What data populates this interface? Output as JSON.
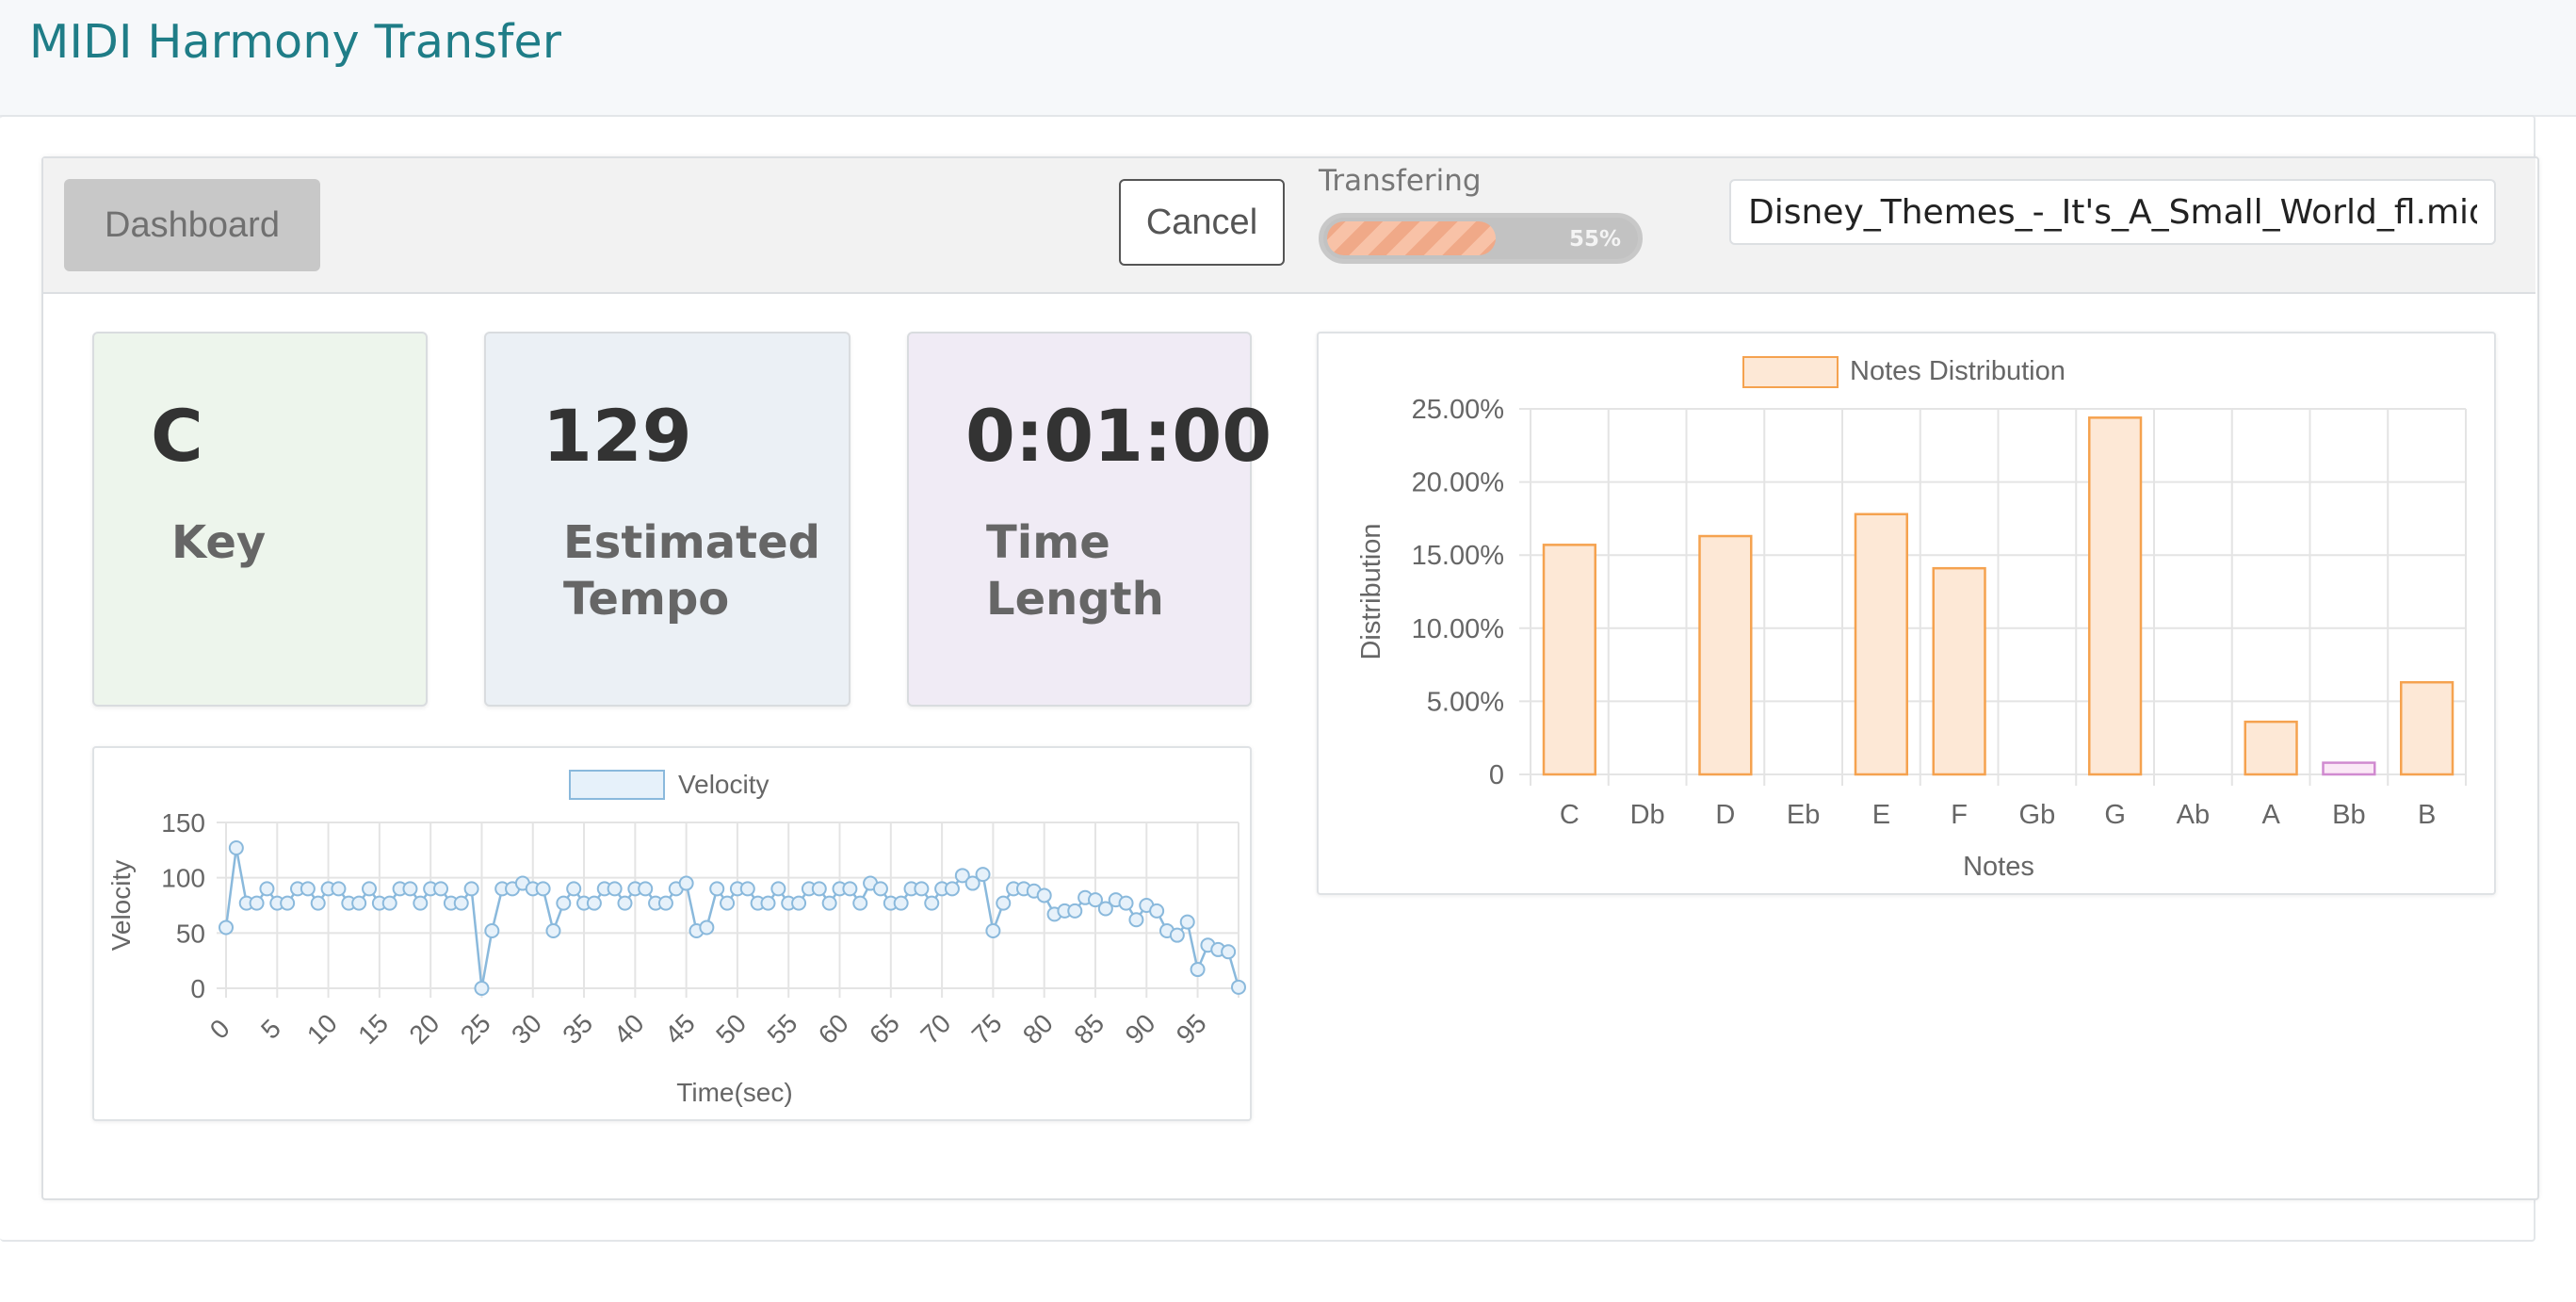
{
  "app": {
    "title": "MIDI Harmony Transfer"
  },
  "toolbar": {
    "dashboard_label": "Dashboard",
    "cancel_label": "Cancel",
    "progress_label": "Transfering",
    "progress_percent_text": "55%",
    "progress_value": 55,
    "file_name": "Disney_Themes_-_It's_A_Small_World_fl.mid"
  },
  "stats": {
    "key": {
      "value": "C",
      "label": "Key"
    },
    "tempo": {
      "value": "129",
      "label_line1": "Estimated",
      "label_line2": "Tempo"
    },
    "time": {
      "value": "0:01:00",
      "label_line1": "Time",
      "label_line2": "Length"
    }
  },
  "colors": {
    "accent_title": "#1f7d87",
    "velocity_line": "#8ab9dc",
    "velocity_fill": "#e6f1fa",
    "notes_bar_fill": "#fde8d6",
    "notes_bar_border": "#f5a24f",
    "notes_bar_bb_fill": "#fbe8f6",
    "notes_bar_bb_border": "#d08ad0"
  },
  "chart_data": [
    {
      "type": "line",
      "legend": "Velocity",
      "xlabel": "Time(sec)",
      "ylabel": "Velocity",
      "ylim": [
        0,
        150
      ],
      "yticks": [
        "0",
        "50",
        "100",
        "150"
      ],
      "xticks": [
        "0",
        "5",
        "10",
        "15",
        "20",
        "25",
        "30",
        "35",
        "40",
        "45",
        "50",
        "55",
        "60",
        "65",
        "70",
        "75",
        "80",
        "85",
        "90",
        "95"
      ],
      "x": [
        0,
        1,
        2,
        3,
        4,
        5,
        6,
        7,
        8,
        9,
        10,
        11,
        12,
        13,
        14,
        15,
        16,
        17,
        18,
        19,
        20,
        21,
        22,
        23,
        24,
        25,
        26,
        27,
        28,
        29,
        30,
        31,
        32,
        33,
        34,
        35,
        36,
        37,
        38,
        39,
        40,
        41,
        42,
        43,
        44,
        45,
        46,
        47,
        48,
        49,
        50,
        51,
        52,
        53,
        54,
        55,
        56,
        57,
        58,
        59,
        60,
        61,
        62,
        63,
        64,
        65,
        66,
        67,
        68,
        69,
        70,
        71,
        72,
        73,
        74,
        75,
        76,
        77,
        78,
        79,
        80,
        81,
        82,
        83,
        84,
        85,
        86,
        87,
        88,
        89,
        90,
        91,
        92,
        93,
        94,
        95,
        96,
        97,
        98,
        99
      ],
      "values": [
        55,
        127,
        77,
        77,
        90,
        77,
        77,
        90,
        90,
        77,
        90,
        90,
        77,
        77,
        90,
        77,
        77,
        90,
        90,
        77,
        90,
        90,
        77,
        77,
        90,
        0,
        52,
        90,
        90,
        95,
        90,
        90,
        52,
        77,
        90,
        77,
        77,
        90,
        90,
        77,
        90,
        90,
        77,
        77,
        90,
        95,
        52,
        55,
        90,
        77,
        90,
        90,
        77,
        77,
        90,
        77,
        77,
        90,
        90,
        77,
        90,
        90,
        77,
        95,
        90,
        77,
        77,
        90,
        90,
        77,
        90,
        90,
        102,
        95,
        103,
        52,
        77,
        90,
        90,
        88,
        84,
        67,
        70,
        70,
        82,
        80,
        72,
        80,
        77,
        62,
        75,
        70,
        52,
        48,
        60,
        17,
        39,
        35,
        33,
        1
      ],
      "grid": true,
      "legend_position": "top"
    },
    {
      "type": "bar",
      "legend": "Notes Distribution",
      "xlabel": "Notes",
      "ylabel": "Distribution",
      "categories": [
        "C",
        "Db",
        "D",
        "Eb",
        "E",
        "F",
        "Gb",
        "G",
        "Ab",
        "A",
        "Bb",
        "B"
      ],
      "values": [
        15.7,
        0,
        16.3,
        0,
        17.8,
        14.1,
        0,
        24.4,
        0,
        3.6,
        0.8,
        6.3
      ],
      "ylim": [
        0,
        25
      ],
      "yticks": [
        "0",
        "5.00%",
        "10.00%",
        "15.00%",
        "20.00%",
        "25.00%"
      ],
      "grid": true,
      "legend_position": "top"
    }
  ]
}
